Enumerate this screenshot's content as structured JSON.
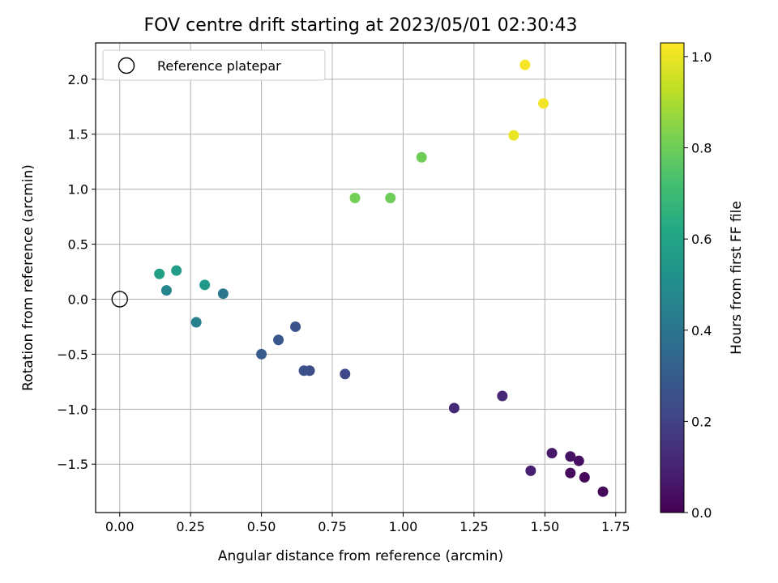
{
  "chart_data": {
    "type": "scatter",
    "title": "FOV centre drift starting at 2023/05/01 02:30:43",
    "xlabel": "Angular distance from reference (arcmin)",
    "ylabel": "Rotation from reference (arcmin)",
    "xlim": [
      -0.085,
      1.785
    ],
    "ylim": [
      -1.94,
      2.33
    ],
    "xticks": [
      0.0,
      0.25,
      0.5,
      0.75,
      1.0,
      1.25,
      1.5,
      1.75
    ],
    "xtick_labels": [
      "0.00",
      "0.25",
      "0.50",
      "0.75",
      "1.00",
      "1.25",
      "1.50",
      "1.75"
    ],
    "yticks": [
      -1.5,
      -1.0,
      -0.5,
      0.0,
      0.5,
      1.0,
      1.5,
      2.0
    ],
    "ytick_labels": [
      "−1.5",
      "−1.0",
      "−0.5",
      "0.0",
      "0.5",
      "1.0",
      "1.5",
      "2.0"
    ],
    "grid": true,
    "legend": {
      "position": "upper-left",
      "entries": [
        "Reference platepar"
      ]
    },
    "reference_point": {
      "x": 0.0,
      "y": 0.0,
      "label": "Reference platepar"
    },
    "colorbar": {
      "label": "Hours from first FF file",
      "colormap": "viridis",
      "range": [
        0.0,
        1.03
      ],
      "ticks": [
        0.0,
        0.2,
        0.4,
        0.6,
        0.8,
        1.0
      ],
      "tick_labels": [
        "0.0",
        "0.2",
        "0.4",
        "0.6",
        "0.8",
        "1.0"
      ]
    },
    "points": [
      {
        "x": 1.705,
        "y": -1.75,
        "c": 0.02
      },
      {
        "x": 1.64,
        "y": -1.62,
        "c": 0.02
      },
      {
        "x": 1.59,
        "y": -1.58,
        "c": 0.03
      },
      {
        "x": 1.62,
        "y": -1.47,
        "c": 0.04
      },
      {
        "x": 1.59,
        "y": -1.43,
        "c": 0.05
      },
      {
        "x": 1.525,
        "y": -1.4,
        "c": 0.07
      },
      {
        "x": 1.45,
        "y": -1.56,
        "c": 0.09
      },
      {
        "x": 1.35,
        "y": -0.88,
        "c": 0.11
      },
      {
        "x": 1.18,
        "y": -0.99,
        "c": 0.12
      },
      {
        "x": 0.795,
        "y": -0.68,
        "c": 0.22
      },
      {
        "x": 0.67,
        "y": -0.65,
        "c": 0.24
      },
      {
        "x": 0.65,
        "y": -0.65,
        "c": 0.25
      },
      {
        "x": 0.62,
        "y": -0.25,
        "c": 0.26
      },
      {
        "x": 0.56,
        "y": -0.37,
        "c": 0.28
      },
      {
        "x": 0.5,
        "y": -0.5,
        "c": 0.3
      },
      {
        "x": 0.365,
        "y": 0.05,
        "c": 0.4
      },
      {
        "x": 0.27,
        "y": -0.21,
        "c": 0.44
      },
      {
        "x": 0.165,
        "y": 0.08,
        "c": 0.46
      },
      {
        "x": 0.3,
        "y": 0.13,
        "c": 0.55
      },
      {
        "x": 0.2,
        "y": 0.26,
        "c": 0.57
      },
      {
        "x": 0.14,
        "y": 0.23,
        "c": 0.58
      },
      {
        "x": 0.955,
        "y": 0.92,
        "c": 0.8
      },
      {
        "x": 0.83,
        "y": 0.92,
        "c": 0.81
      },
      {
        "x": 1.065,
        "y": 1.29,
        "c": 0.8
      },
      {
        "x": 1.39,
        "y": 1.49,
        "c": 1.0
      },
      {
        "x": 1.495,
        "y": 1.78,
        "c": 1.01
      },
      {
        "x": 1.43,
        "y": 2.13,
        "c": 1.02
      }
    ]
  }
}
